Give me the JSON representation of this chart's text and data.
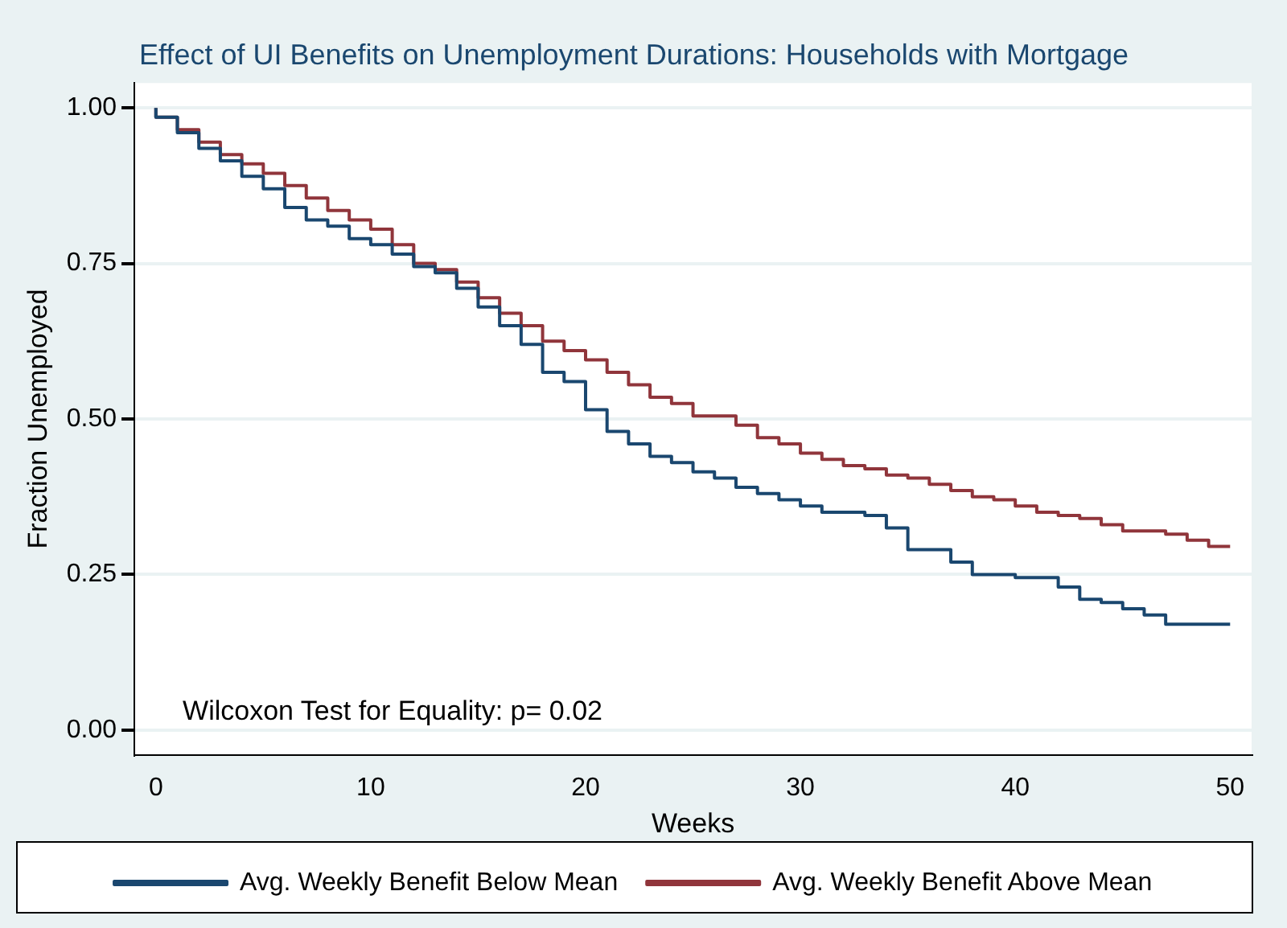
{
  "chart_data": {
    "type": "step",
    "title": "Effect of UI Benefits on Unemployment Durations: Households with Mortgage",
    "xlabel": "Weeks",
    "ylabel": "Fraction Unemployed",
    "x": [
      0,
      1,
      2,
      3,
      4,
      5,
      6,
      7,
      8,
      9,
      10,
      11,
      12,
      13,
      14,
      15,
      16,
      17,
      18,
      19,
      20,
      21,
      22,
      23,
      24,
      25,
      26,
      27,
      28,
      29,
      30,
      31,
      32,
      33,
      34,
      35,
      36,
      37,
      38,
      39,
      40,
      41,
      42,
      43,
      44,
      45,
      46,
      47,
      48,
      49,
      50
    ],
    "series": [
      {
        "name": "Avg. Weekly Benefit Below Mean",
        "color": "#1a476f",
        "values": [
          1.0,
          0.985,
          0.96,
          0.935,
          0.915,
          0.89,
          0.87,
          0.84,
          0.82,
          0.81,
          0.79,
          0.78,
          0.765,
          0.745,
          0.735,
          0.71,
          0.68,
          0.65,
          0.62,
          0.575,
          0.56,
          0.515,
          0.48,
          0.46,
          0.44,
          0.43,
          0.415,
          0.405,
          0.39,
          0.38,
          0.37,
          0.36,
          0.35,
          0.35,
          0.345,
          0.325,
          0.29,
          0.29,
          0.27,
          0.25,
          0.25,
          0.245,
          0.245,
          0.23,
          0.21,
          0.205,
          0.195,
          0.185,
          0.17,
          0.17,
          0.17
        ]
      },
      {
        "name": "Avg. Weekly Benefit Above Mean",
        "color": "#90353b",
        "values": [
          1.0,
          0.985,
          0.965,
          0.945,
          0.925,
          0.91,
          0.895,
          0.875,
          0.855,
          0.835,
          0.82,
          0.805,
          0.78,
          0.75,
          0.74,
          0.72,
          0.695,
          0.67,
          0.65,
          0.625,
          0.61,
          0.595,
          0.575,
          0.555,
          0.535,
          0.525,
          0.505,
          0.505,
          0.49,
          0.47,
          0.46,
          0.445,
          0.435,
          0.425,
          0.42,
          0.41,
          0.405,
          0.395,
          0.385,
          0.375,
          0.37,
          0.36,
          0.35,
          0.345,
          0.34,
          0.33,
          0.32,
          0.32,
          0.315,
          0.305,
          0.295
        ]
      }
    ],
    "xlim": [
      -1,
      51
    ],
    "xticks": [
      0,
      10,
      20,
      30,
      40,
      50
    ],
    "ylim": [
      -0.04,
      1.04
    ],
    "yticks": [
      {
        "value": 0,
        "label": "0.00"
      },
      {
        "value": 0.25,
        "label": "0.25"
      },
      {
        "value": 0.5,
        "label": "0.50"
      },
      {
        "value": 0.75,
        "label": "0.75"
      },
      {
        "value": 1,
        "label": "1.00"
      }
    ],
    "grid": "y",
    "legend": "bottom",
    "marker": "none",
    "line_style": "solid",
    "annotations": [
      "Wilcoxon Test for Equality: p= 0.02"
    ]
  }
}
